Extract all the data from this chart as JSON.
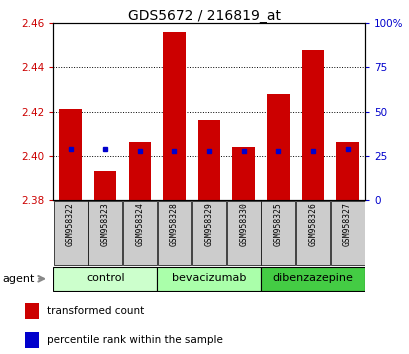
{
  "title": "GDS5672 / 216819_at",
  "samples": [
    "GSM958322",
    "GSM958323",
    "GSM958324",
    "GSM958328",
    "GSM958329",
    "GSM958330",
    "GSM958325",
    "GSM958326",
    "GSM958327"
  ],
  "bar_values": [
    2.421,
    2.393,
    2.406,
    2.456,
    2.416,
    2.404,
    2.428,
    2.448,
    2.406
  ],
  "bar_bottom": 2.38,
  "percentile_values": [
    2.403,
    2.403,
    2.402,
    2.402,
    2.402,
    2.402,
    2.402,
    2.402,
    2.403
  ],
  "ylim_left": [
    2.38,
    2.46
  ],
  "ylim_right": [
    0,
    100
  ],
  "yticks_left": [
    2.38,
    2.4,
    2.42,
    2.44,
    2.46
  ],
  "yticks_right": [
    0,
    25,
    50,
    75,
    100
  ],
  "bar_color": "#cc0000",
  "blue_color": "#0000cc",
  "groups": [
    {
      "label": "control",
      "indices": [
        0,
        1,
        2
      ],
      "color": "#ccffcc"
    },
    {
      "label": "bevacizumab",
      "indices": [
        3,
        4,
        5
      ],
      "color": "#aaffaa"
    },
    {
      "label": "dibenzazepine",
      "indices": [
        6,
        7,
        8
      ],
      "color": "#44cc44"
    }
  ],
  "agent_label": "agent",
  "legend_red": "transformed count",
  "legend_blue": "percentile rank within the sample",
  "bg_color": "#ffffff",
  "tick_bg": "#cccccc",
  "title_fontsize": 10,
  "label_fontsize": 7,
  "group_fontsize": 8
}
